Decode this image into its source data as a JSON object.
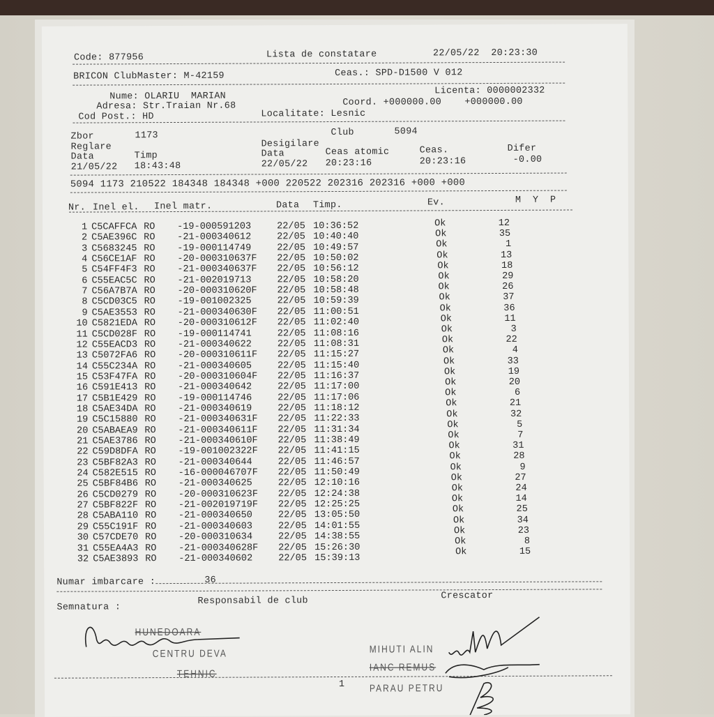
{
  "header": {
    "code": "Code: 877956",
    "title": "Lista de constatare",
    "datetime": "22/05/22  20:23:30",
    "device": "BRICON ClubMaster: M-42159",
    "clock": "Ceas.: SPD-D1500 V 012",
    "name": "Nume: OLARIU  MARIAN",
    "license": "Licenta: 0000002332",
    "address": "Adresa: Str.Traian Nr.68",
    "coord": "Coord. +000000.00    +000000.00",
    "postal": "Cod Post.: HD",
    "locality": "Localitate: Lesnic"
  },
  "flight": {
    "zbor_label": "Zbor",
    "zbor": "1173",
    "club_label": "Club",
    "club": "5094",
    "reglare": "Reglare",
    "desigilare": "Desigilare",
    "data_label": "Data",
    "timp_label": "Timp",
    "data2_label": "Data",
    "atomic_label": "Ceas atomic",
    "ceas_label": "Ceas.",
    "difer_label": "Difer",
    "reg_date": "21/05/22",
    "reg_time": "18:43:48",
    "des_date": "22/05/22",
    "atomic": "20:23:16",
    "ceas": "20:23:16",
    "difer": "-0.00",
    "code_line": "5094 1173 210522 184348 184348 +000 220522 202316 202316 +000 +000"
  },
  "columns": {
    "nr": "Nr.",
    "inel_el": "Inel el.",
    "inel_matr": "Inel matr.",
    "data": "Data",
    "timp": "Timp.",
    "ev": "Ev.",
    "myp": "M  Y  P"
  },
  "rows": [
    [
      "1",
      "C5CAFFCA",
      "RO",
      "-19-000591203",
      "22/05",
      "10:36:52",
      "Ok",
      "12"
    ],
    [
      "2",
      "C5AE396C",
      "RO",
      "-21-000340612",
      "22/05",
      "10:40:40",
      "Ok",
      "35"
    ],
    [
      "3",
      "C5683245",
      "RO",
      "-19-000114749",
      "22/05",
      "10:49:57",
      "Ok",
      "1"
    ],
    [
      "4",
      "C56CE1AF",
      "RO",
      "-20-000310637F",
      "22/05",
      "10:50:02",
      "Ok",
      "13"
    ],
    [
      "5",
      "C54FF4F3",
      "RO",
      "-21-000340637F",
      "22/05",
      "10:56:12",
      "Ok",
      "18"
    ],
    [
      "6",
      "C55EAC5C",
      "RO",
      "-21-002019713",
      "22/05",
      "10:58:20",
      "Ok",
      "29"
    ],
    [
      "7",
      "C56A7B7A",
      "RO",
      "-20-000310620F",
      "22/05",
      "10:58:48",
      "Ok",
      "26"
    ],
    [
      "8",
      "C5CD03C5",
      "RO",
      "-19-001002325",
      "22/05",
      "10:59:39",
      "Ok",
      "37"
    ],
    [
      "9",
      "C5AE3553",
      "RO",
      "-21-000340630F",
      "22/05",
      "11:00:51",
      "Ok",
      "36"
    ],
    [
      "10",
      "C5821EDA",
      "RO",
      "-20-000310612F",
      "22/05",
      "11:02:40",
      "Ok",
      "11"
    ],
    [
      "11",
      "C5CD028F",
      "RO",
      "-19-000114741",
      "22/05",
      "11:08:16",
      "Ok",
      "3"
    ],
    [
      "12",
      "C55EACD3",
      "RO",
      "-21-000340622",
      "22/05",
      "11:08:31",
      "Ok",
      "22"
    ],
    [
      "13",
      "C5072FA6",
      "RO",
      "-20-000310611F",
      "22/05",
      "11:15:27",
      "Ok",
      "4"
    ],
    [
      "14",
      "C55C234A",
      "RO",
      "-21-000340605",
      "22/05",
      "11:15:40",
      "Ok",
      "33"
    ],
    [
      "15",
      "C53F47FA",
      "RO",
      "-20-000310604F",
      "22/05",
      "11:16:37",
      "Ok",
      "19"
    ],
    [
      "16",
      "C591E413",
      "RO",
      "-21-000340642",
      "22/05",
      "11:17:00",
      "Ok",
      "20"
    ],
    [
      "17",
      "C5B1E429",
      "RO",
      "-19-000114746",
      "22/05",
      "11:17:06",
      "Ok",
      "6"
    ],
    [
      "18",
      "C5AE34DA",
      "RO",
      "-21-000340619",
      "22/05",
      "11:18:12",
      "Ok",
      "21"
    ],
    [
      "19",
      "C5C15880",
      "RO",
      "-21-000340631F",
      "22/05",
      "11:22:33",
      "Ok",
      "32"
    ],
    [
      "20",
      "C5ABAEA9",
      "RO",
      "-21-000340611F",
      "22/05",
      "11:31:34",
      "Ok",
      "5"
    ],
    [
      "21",
      "C5AE3786",
      "RO",
      "-21-000340610F",
      "22/05",
      "11:38:49",
      "Ok",
      "7"
    ],
    [
      "22",
      "C59D8DFA",
      "RO",
      "-19-001002322F",
      "22/05",
      "11:41:15",
      "Ok",
      "31"
    ],
    [
      "23",
      "C5BF82A3",
      "RO",
      "-21-000340644",
      "22/05",
      "11:46:57",
      "Ok",
      "28"
    ],
    [
      "24",
      "C582E515",
      "RO",
      "-16-000046707F",
      "22/05",
      "11:50:49",
      "Ok",
      "9"
    ],
    [
      "25",
      "C5BF84B6",
      "RO",
      "-21-000340625",
      "22/05",
      "12:10:16",
      "Ok",
      "27"
    ],
    [
      "26",
      "C5CD0279",
      "RO",
      "-20-000310623F",
      "22/05",
      "12:24:38",
      "Ok",
      "24"
    ],
    [
      "27",
      "C5BF822F",
      "RO",
      "-21-002019719F",
      "22/05",
      "12:25:25",
      "Ok",
      "14"
    ],
    [
      "28",
      "C5ABA110",
      "RO",
      "-21-000340650",
      "22/05",
      "13:05:50",
      "Ok",
      "25"
    ],
    [
      "29",
      "C55C191F",
      "RO",
      "-21-000340603",
      "22/05",
      "14:01:55",
      "Ok",
      "34"
    ],
    [
      "30",
      "C57CDE70",
      "RO",
      "-20-000310634",
      "22/05",
      "14:38:55",
      "Ok",
      "23"
    ],
    [
      "31",
      "C55EA4A3",
      "RO",
      "-21-000340628F",
      "22/05",
      "15:26:30",
      "Ok",
      "8"
    ],
    [
      "32",
      "C5AE3893",
      "RO",
      "-21-000340602",
      "22/05",
      "15:39:13",
      "Ok",
      "15"
    ]
  ],
  "footer": {
    "numar_label": "Numar imbarcare :",
    "numar": "36",
    "semnatura": "Semnatura :",
    "responsabil": "Responsabil de club",
    "crescator": "Crescator",
    "page": "1",
    "stamp": [
      "HUNEDOARA",
      "CENTRU DEVA",
      "TEHNIC"
    ],
    "witnesses": [
      "MIHUTI  ALIN",
      "IANC  REMUS",
      "PARAU  PETRU"
    ]
  }
}
